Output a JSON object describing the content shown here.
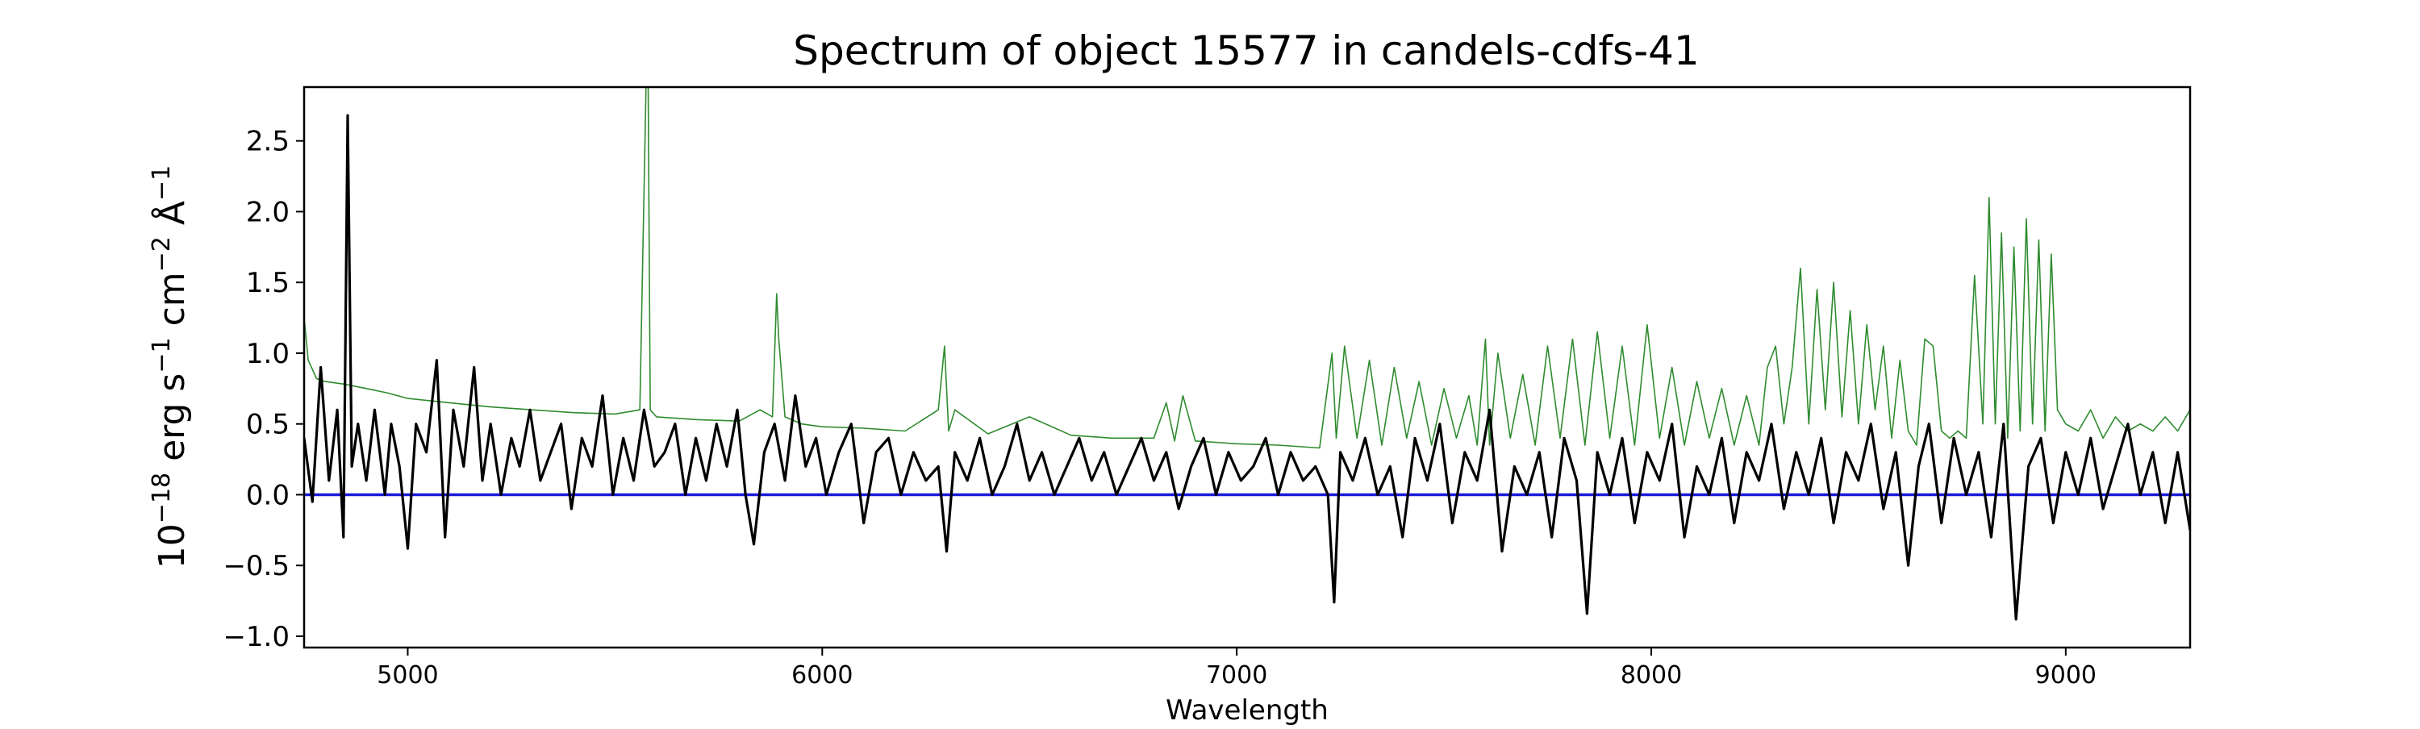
{
  "chart_data": {
    "type": "line",
    "title": "Spectrum of object 15577 in candels-cdfs-41",
    "xlabel": "Wavelength",
    "ylabel": {
      "prefix": "10",
      "exp": "−18",
      "unit1": " erg s",
      "exp1": "−1",
      "unit2": " cm",
      "exp2": "−2",
      "unit3": " Å",
      "exp3": "−1"
    },
    "xlim": [
      4750,
      9300
    ],
    "ylim": [
      -1.08,
      2.88
    ],
    "xticks": [
      5000,
      6000,
      7000,
      8000,
      9000
    ],
    "yticks": [
      -1.0,
      -0.5,
      0.0,
      0.5,
      1.0,
      1.5,
      2.0,
      2.5
    ],
    "xtick_labels": [
      "5000",
      "6000",
      "7000",
      "8000",
      "9000"
    ],
    "ytick_labels": [
      "−1.0",
      "−0.5",
      "0.0",
      "0.5",
      "1.0",
      "1.5",
      "2.0",
      "2.5"
    ],
    "grid": false,
    "colors": {
      "flux": "#000000",
      "error": "#2e8b2e",
      "zero": "#1a1adb"
    },
    "series": [
      {
        "key": "flux",
        "x": [
          4750,
          4770,
          4790,
          4810,
          4830,
          4845,
          4855,
          4865,
          4880,
          4900,
          4920,
          4945,
          4960,
          4980,
          5000,
          5020,
          5045,
          5070,
          5090,
          5110,
          5135,
          5160,
          5180,
          5200,
          5225,
          5250,
          5270,
          5295,
          5320,
          5345,
          5370,
          5395,
          5420,
          5445,
          5470,
          5495,
          5520,
          5545,
          5570,
          5595,
          5620,
          5645,
          5670,
          5695,
          5720,
          5745,
          5770,
          5795,
          5815,
          5835,
          5860,
          5885,
          5910,
          5935,
          5960,
          5985,
          6010,
          6040,
          6070,
          6100,
          6130,
          6160,
          6190,
          6220,
          6250,
          6280,
          6300,
          6320,
          6350,
          6380,
          6410,
          6440,
          6470,
          6500,
          6530,
          6560,
          6590,
          6620,
          6650,
          6680,
          6710,
          6740,
          6770,
          6800,
          6830,
          6860,
          6890,
          6920,
          6950,
          6980,
          7010,
          7040,
          7070,
          7100,
          7130,
          7160,
          7190,
          7220,
          7235,
          7250,
          7280,
          7310,
          7340,
          7370,
          7400,
          7430,
          7460,
          7490,
          7520,
          7550,
          7580,
          7610,
          7640,
          7670,
          7700,
          7730,
          7760,
          7790,
          7820,
          7845,
          7870,
          7900,
          7930,
          7960,
          7990,
          8020,
          8050,
          8080,
          8110,
          8140,
          8170,
          8200,
          8230,
          8260,
          8290,
          8320,
          8350,
          8380,
          8410,
          8440,
          8470,
          8500,
          8530,
          8560,
          8590,
          8620,
          8645,
          8670,
          8700,
          8730,
          8760,
          8790,
          8820,
          8850,
          8880,
          8910,
          8940,
          8970,
          9000,
          9030,
          9060,
          9090,
          9120,
          9150,
          9180,
          9210,
          9240,
          9270,
          9300
        ],
        "y": [
          0.4,
          -0.05,
          0.9,
          0.1,
          0.6,
          -0.3,
          2.68,
          0.2,
          0.5,
          0.1,
          0.6,
          0.0,
          0.5,
          0.2,
          -0.38,
          0.5,
          0.3,
          0.95,
          -0.3,
          0.6,
          0.2,
          0.9,
          0.1,
          0.5,
          0.0,
          0.4,
          0.2,
          0.6,
          0.1,
          0.3,
          0.5,
          -0.1,
          0.4,
          0.2,
          0.7,
          0.0,
          0.4,
          0.1,
          0.6,
          0.2,
          0.3,
          0.5,
          0.0,
          0.4,
          0.1,
          0.5,
          0.2,
          0.6,
          0.0,
          -0.35,
          0.3,
          0.5,
          0.1,
          0.7,
          0.2,
          0.4,
          0.0,
          0.3,
          0.5,
          -0.2,
          0.3,
          0.4,
          0.0,
          0.3,
          0.1,
          0.2,
          -0.4,
          0.3,
          0.1,
          0.4,
          0.0,
          0.2,
          0.5,
          0.1,
          0.3,
          0.0,
          0.2,
          0.4,
          0.1,
          0.3,
          0.0,
          0.2,
          0.4,
          0.1,
          0.3,
          -0.1,
          0.2,
          0.4,
          0.0,
          0.3,
          0.1,
          0.2,
          0.4,
          0.0,
          0.3,
          0.1,
          0.2,
          0.0,
          -0.76,
          0.3,
          0.1,
          0.4,
          0.0,
          0.2,
          -0.3,
          0.4,
          0.1,
          0.5,
          -0.2,
          0.3,
          0.1,
          0.6,
          -0.4,
          0.2,
          0.0,
          0.3,
          -0.3,
          0.4,
          0.1,
          -0.84,
          0.3,
          0.0,
          0.4,
          -0.2,
          0.3,
          0.1,
          0.5,
          -0.3,
          0.2,
          0.0,
          0.4,
          -0.2,
          0.3,
          0.1,
          0.5,
          -0.1,
          0.3,
          0.0,
          0.4,
          -0.2,
          0.3,
          0.1,
          0.5,
          -0.1,
          0.3,
          -0.5,
          0.2,
          0.5,
          -0.2,
          0.4,
          0.0,
          0.3,
          -0.3,
          0.5,
          -0.88,
          0.2,
          0.4,
          -0.2,
          0.3,
          0.0,
          0.4,
          -0.1,
          0.2,
          0.5,
          0.0,
          0.3,
          -0.2,
          0.3,
          -0.25
        ]
      },
      {
        "key": "error",
        "x": [
          4750,
          4760,
          4780,
          4800,
          4850,
          4900,
          4950,
          5000,
          5100,
          5200,
          5300,
          5400,
          5500,
          5560,
          5575,
          5580,
          5585,
          5600,
          5700,
          5800,
          5850,
          5880,
          5890,
          5895,
          5910,
          5950,
          6000,
          6100,
          6200,
          6280,
          6295,
          6305,
          6320,
          6400,
          6500,
          6600,
          6700,
          6800,
          6830,
          6850,
          6870,
          6900,
          7000,
          7100,
          7200,
          7230,
          7240,
          7260,
          7290,
          7320,
          7350,
          7380,
          7410,
          7440,
          7470,
          7500,
          7530,
          7560,
          7580,
          7600,
          7610,
          7630,
          7660,
          7690,
          7720,
          7750,
          7780,
          7810,
          7840,
          7870,
          7900,
          7930,
          7960,
          7990,
          8020,
          8050,
          8080,
          8110,
          8140,
          8170,
          8200,
          8230,
          8260,
          8280,
          8300,
          8320,
          8340,
          8360,
          8380,
          8400,
          8420,
          8440,
          8460,
          8480,
          8500,
          8520,
          8540,
          8560,
          8580,
          8600,
          8620,
          8640,
          8660,
          8680,
          8700,
          8720,
          8740,
          8760,
          8780,
          8800,
          8815,
          8830,
          8845,
          8860,
          8875,
          8890,
          8905,
          8920,
          8935,
          8950,
          8965,
          8980,
          9000,
          9030,
          9060,
          9090,
          9120,
          9150,
          9180,
          9210,
          9240,
          9270,
          9300
        ],
        "y": [
          1.25,
          0.95,
          0.82,
          0.8,
          0.78,
          0.75,
          0.72,
          0.68,
          0.65,
          0.62,
          0.6,
          0.58,
          0.57,
          0.6,
          2.9,
          2.9,
          0.6,
          0.55,
          0.53,
          0.52,
          0.6,
          0.55,
          1.42,
          1.1,
          0.55,
          0.5,
          0.48,
          0.47,
          0.45,
          0.6,
          1.05,
          0.45,
          0.6,
          0.43,
          0.55,
          0.42,
          0.4,
          0.4,
          0.65,
          0.38,
          0.7,
          0.38,
          0.36,
          0.35,
          0.33,
          1.0,
          0.4,
          1.05,
          0.4,
          0.95,
          0.35,
          0.9,
          0.4,
          0.8,
          0.35,
          0.75,
          0.4,
          0.7,
          0.35,
          1.1,
          0.35,
          1.0,
          0.4,
          0.85,
          0.35,
          1.05,
          0.4,
          1.1,
          0.35,
          1.15,
          0.4,
          1.05,
          0.35,
          1.2,
          0.4,
          0.9,
          0.35,
          0.8,
          0.4,
          0.75,
          0.35,
          0.7,
          0.35,
          0.9,
          1.05,
          0.5,
          0.9,
          1.6,
          0.5,
          1.45,
          0.6,
          1.5,
          0.55,
          1.3,
          0.5,
          1.2,
          0.6,
          1.05,
          0.4,
          0.95,
          0.45,
          0.35,
          1.1,
          1.05,
          0.45,
          0.4,
          0.45,
          0.4,
          1.55,
          0.5,
          2.1,
          0.5,
          1.85,
          0.4,
          1.75,
          0.45,
          1.95,
          0.5,
          1.8,
          0.45,
          1.7,
          0.6,
          0.5,
          0.45,
          0.6,
          0.4,
          0.55,
          0.45,
          0.5,
          0.45,
          0.55,
          0.45,
          0.6
        ]
      },
      {
        "key": "zero",
        "x": [
          4750,
          9300
        ],
        "y": [
          0.0,
          0.0
        ]
      }
    ]
  }
}
